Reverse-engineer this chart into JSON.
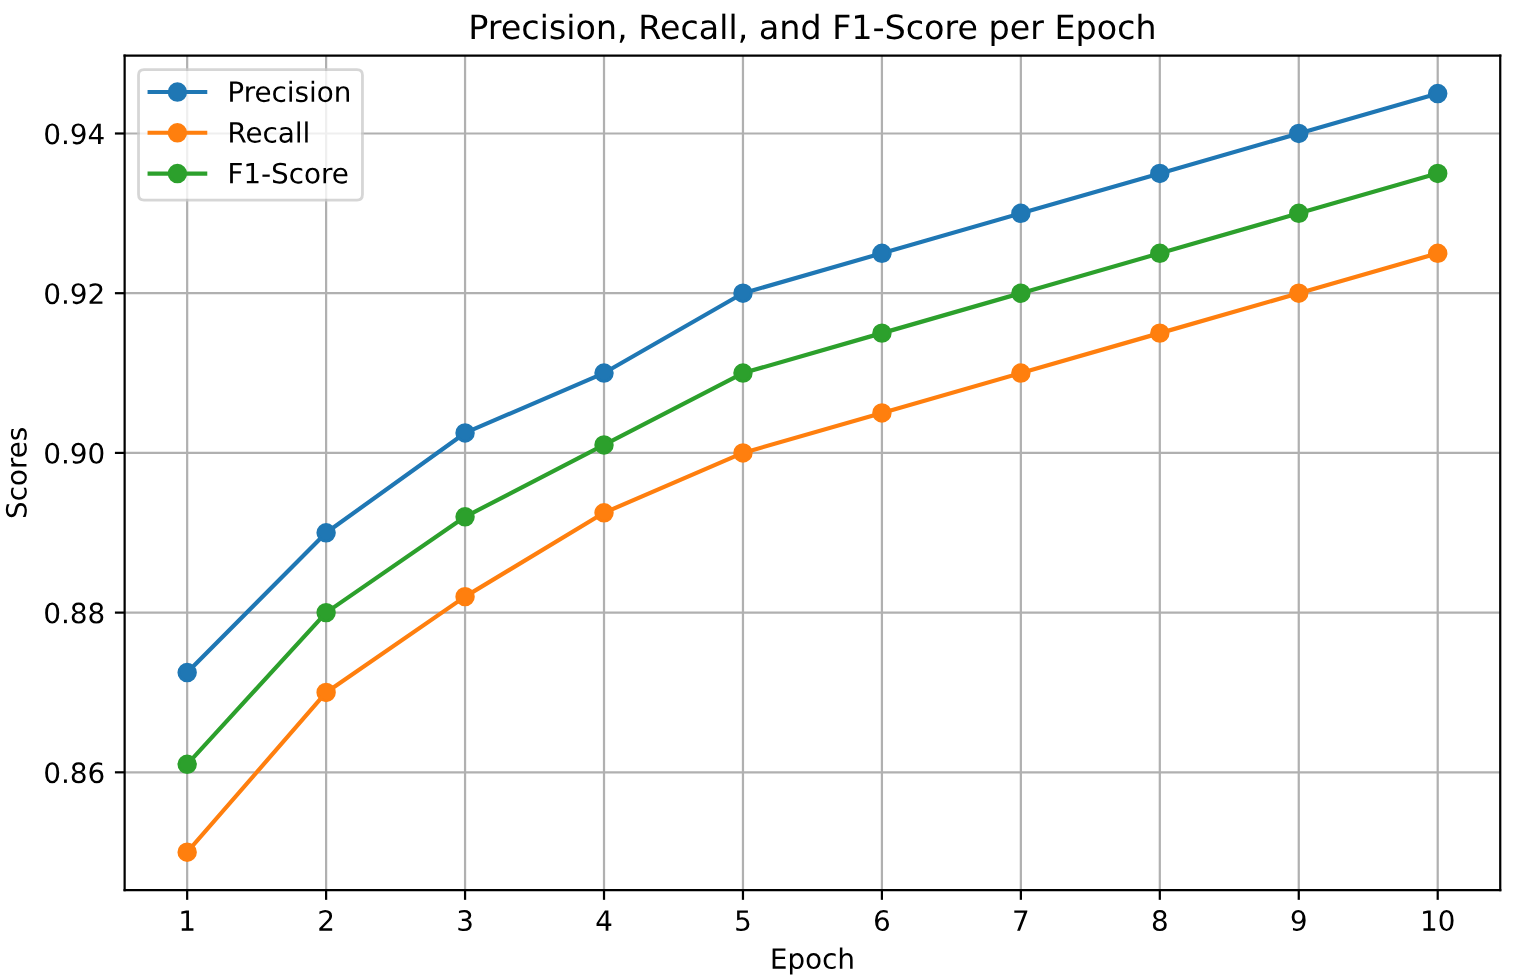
{
  "chart_data": {
    "type": "line",
    "title": "Precision, Recall, and F1-Score per Epoch",
    "xlabel": "Epoch",
    "ylabel": "Scores",
    "x": [
      1,
      2,
      3,
      4,
      5,
      6,
      7,
      8,
      9,
      10
    ],
    "series": [
      {
        "name": "Precision",
        "color": "#1f77b4",
        "values": [
          0.8725,
          0.89,
          0.9025,
          0.91,
          0.92,
          0.925,
          0.93,
          0.935,
          0.94,
          0.945
        ]
      },
      {
        "name": "Recall",
        "color": "#ff7f0e",
        "values": [
          0.85,
          0.87,
          0.882,
          0.8925,
          0.9,
          0.905,
          0.91,
          0.915,
          0.92,
          0.925
        ]
      },
      {
        "name": "F1-Score",
        "color": "#2ca02c",
        "values": [
          0.861,
          0.88,
          0.892,
          0.901,
          0.91,
          0.915,
          0.92,
          0.925,
          0.93,
          0.935
        ]
      }
    ],
    "xlim": [
      0.55,
      10.45
    ],
    "ylim": [
      0.84525,
      0.94975
    ],
    "xticks": [
      1,
      2,
      3,
      4,
      5,
      6,
      7,
      8,
      9,
      10
    ],
    "yticks": [
      {
        "value": 0.86,
        "label": "0.86"
      },
      {
        "value": 0.88,
        "label": "0.88"
      },
      {
        "value": 0.9,
        "label": "0.90"
      },
      {
        "value": 0.92,
        "label": "0.92"
      },
      {
        "value": 0.94,
        "label": "0.94"
      }
    ],
    "grid": true,
    "legend": "top left",
    "marker": "circle",
    "line_style": "solid"
  }
}
